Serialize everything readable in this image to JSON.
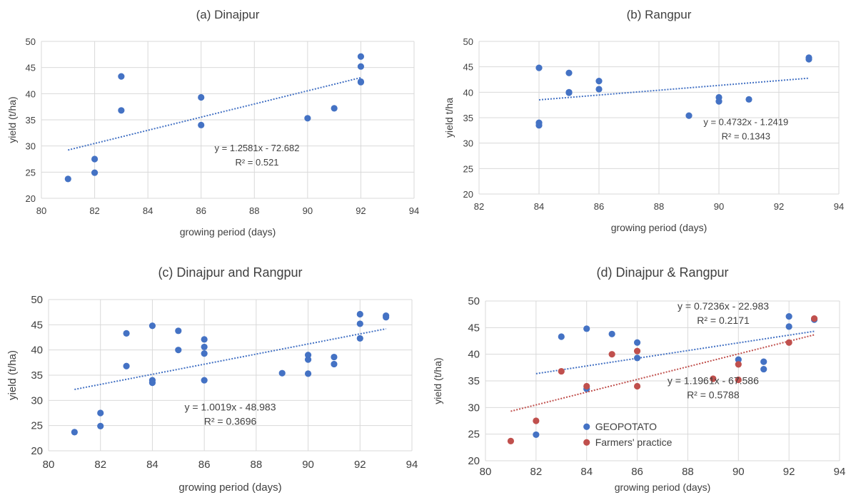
{
  "chart_data": [
    {
      "type": "scatter",
      "title": "(a) Dinajpur",
      "xlabel": "growing period (days)",
      "ylabel": "yield (t/ha)",
      "xlim": [
        80,
        94
      ],
      "ylim": [
        20,
        50
      ],
      "xticks": [
        "80",
        "82",
        "84",
        "86",
        "88",
        "90",
        "92",
        "94"
      ],
      "yticks": [
        "20",
        "25",
        "30",
        "35",
        "40",
        "45",
        "50"
      ],
      "grid": true,
      "series": [
        {
          "color": "#4472C4",
          "points": [
            [
              81,
              23.7
            ],
            [
              82,
              27.5
            ],
            [
              82,
              24.9
            ],
            [
              83,
              43.3
            ],
            [
              83,
              36.8
            ],
            [
              86,
              39.3
            ],
            [
              86,
              34.0
            ],
            [
              90,
              35.3
            ],
            [
              91,
              37.2
            ],
            [
              92,
              47.1
            ],
            [
              92,
              45.2
            ],
            [
              92,
              42.3
            ],
            [
              92,
              42.2
            ]
          ],
          "trend": {
            "slope": 1.2581,
            "intercept": -72.682,
            "x": [
              81,
              92
            ]
          }
        }
      ],
      "annotations": [
        {
          "lines": [
            "y = 1.2581x - 72.682",
            "R² = 0.521"
          ],
          "x": 88.1,
          "y": 29
        }
      ]
    },
    {
      "type": "scatter",
      "title": "(b) Rangpur",
      "xlabel": "growing period (days)",
      "ylabel": "yield t/ha",
      "xlim": [
        82,
        94
      ],
      "ylim": [
        20,
        50
      ],
      "xticks": [
        "82",
        "84",
        "86",
        "88",
        "90",
        "92",
        "94"
      ],
      "yticks": [
        "20",
        "25",
        "30",
        "35",
        "40",
        "45",
        "50"
      ],
      "grid": true,
      "series": [
        {
          "color": "#4472C4",
          "points": [
            [
              84,
              44.8
            ],
            [
              84,
              34.0
            ],
            [
              84,
              33.5
            ],
            [
              85,
              43.8
            ],
            [
              85,
              39.9
            ],
            [
              85,
              40.0
            ],
            [
              86,
              42.2
            ],
            [
              86,
              40.6
            ],
            [
              89,
              35.4
            ],
            [
              90,
              39.0
            ],
            [
              90,
              38.2
            ],
            [
              91,
              38.6
            ],
            [
              93,
              46.8
            ],
            [
              93,
              46.5
            ]
          ],
          "trend": {
            "slope": 0.4732,
            "intercept": -1.2419,
            "x": [
              84,
              93
            ]
          }
        }
      ],
      "annotations": [
        {
          "lines": [
            "y = 0.4732x - 1.2419",
            "R² = 0.1343"
          ],
          "x": 90.9,
          "y": 33.5
        }
      ]
    },
    {
      "type": "scatter",
      "title": "(c) Dinajpur and Rangpur",
      "xlabel": "growing period (days)",
      "ylabel": "yield (t/ha)",
      "xlim": [
        80,
        94
      ],
      "ylim": [
        20,
        50
      ],
      "xticks": [
        "80",
        "82",
        "84",
        "86",
        "88",
        "90",
        "92",
        "94"
      ],
      "yticks": [
        "20",
        "25",
        "30",
        "35",
        "40",
        "45",
        "50"
      ],
      "grid": true,
      "series": [
        {
          "color": "#4472C4",
          "points": [
            [
              81,
              23.7
            ],
            [
              82,
              27.5
            ],
            [
              82,
              24.9
            ],
            [
              83,
              43.3
            ],
            [
              83,
              36.8
            ],
            [
              84,
              44.8
            ],
            [
              84,
              34.0
            ],
            [
              84,
              33.5
            ],
            [
              85,
              43.8
            ],
            [
              85,
              40.0
            ],
            [
              86,
              42.1
            ],
            [
              86,
              40.6
            ],
            [
              86,
              39.3
            ],
            [
              86,
              34.0
            ],
            [
              89,
              35.4
            ],
            [
              90,
              39.0
            ],
            [
              90,
              38.1
            ],
            [
              90,
              35.3
            ],
            [
              91,
              38.6
            ],
            [
              91,
              37.2
            ],
            [
              92,
              47.1
            ],
            [
              92,
              45.2
            ],
            [
              92,
              42.3
            ],
            [
              93,
              46.8
            ],
            [
              93,
              46.5
            ]
          ],
          "trend": {
            "slope": 1.0019,
            "intercept": -48.983,
            "x": [
              81,
              93
            ]
          }
        }
      ],
      "annotations": [
        {
          "lines": [
            "y = 1.0019x - 48.983",
            "R² = 0.3696"
          ],
          "x": 87.0,
          "y": 28
        }
      ]
    },
    {
      "type": "scatter",
      "title": "(d) Dinajpur & Rangpur",
      "xlabel": "growing period (days)",
      "ylabel": "yield (t/ha)",
      "xlim": [
        80,
        94
      ],
      "ylim": [
        20,
        50
      ],
      "xticks": [
        "80",
        "82",
        "84",
        "86",
        "88",
        "90",
        "92",
        "94"
      ],
      "yticks": [
        "20",
        "25",
        "30",
        "35",
        "40",
        "45",
        "50"
      ],
      "grid": true,
      "legend": "bottom-left",
      "series": [
        {
          "name": "GEOPOTATO",
          "color": "#4472C4",
          "points": [
            [
              82,
              24.9
            ],
            [
              83,
              43.3
            ],
            [
              84,
              44.8
            ],
            [
              84,
              33.5
            ],
            [
              85,
              43.8
            ],
            [
              86,
              42.2
            ],
            [
              86,
              39.3
            ],
            [
              90,
              39.0
            ],
            [
              91,
              38.6
            ],
            [
              91,
              37.2
            ],
            [
              92,
              47.1
            ],
            [
              92,
              45.2
            ],
            [
              93,
              46.5
            ]
          ],
          "trend": {
            "slope": 0.7236,
            "intercept": -22.983,
            "x": [
              82,
              93
            ]
          }
        },
        {
          "name": "Farmers' practice",
          "color": "#C0504D",
          "points": [
            [
              81,
              23.7
            ],
            [
              82,
              27.5
            ],
            [
              83,
              36.8
            ],
            [
              84,
              34.0
            ],
            [
              85,
              40.0
            ],
            [
              86,
              40.6
            ],
            [
              86,
              34.0
            ],
            [
              89,
              35.4
            ],
            [
              90,
              38.1
            ],
            [
              90,
              35.2
            ],
            [
              92,
              42.2
            ],
            [
              93,
              46.7
            ]
          ],
          "trend": {
            "slope": 1.1961,
            "intercept": -67.586,
            "x": [
              81,
              93
            ]
          }
        }
      ],
      "annotations": [
        {
          "lines": [
            "y = 0.7236x - 22.983",
            "R² = 0.2171"
          ],
          "x": 89.4,
          "y": 48.4
        },
        {
          "lines": [
            "y = 1.1961x - 67.586",
            "R² = 0.5788"
          ],
          "x": 89.0,
          "y": 34.4
        }
      ]
    }
  ]
}
